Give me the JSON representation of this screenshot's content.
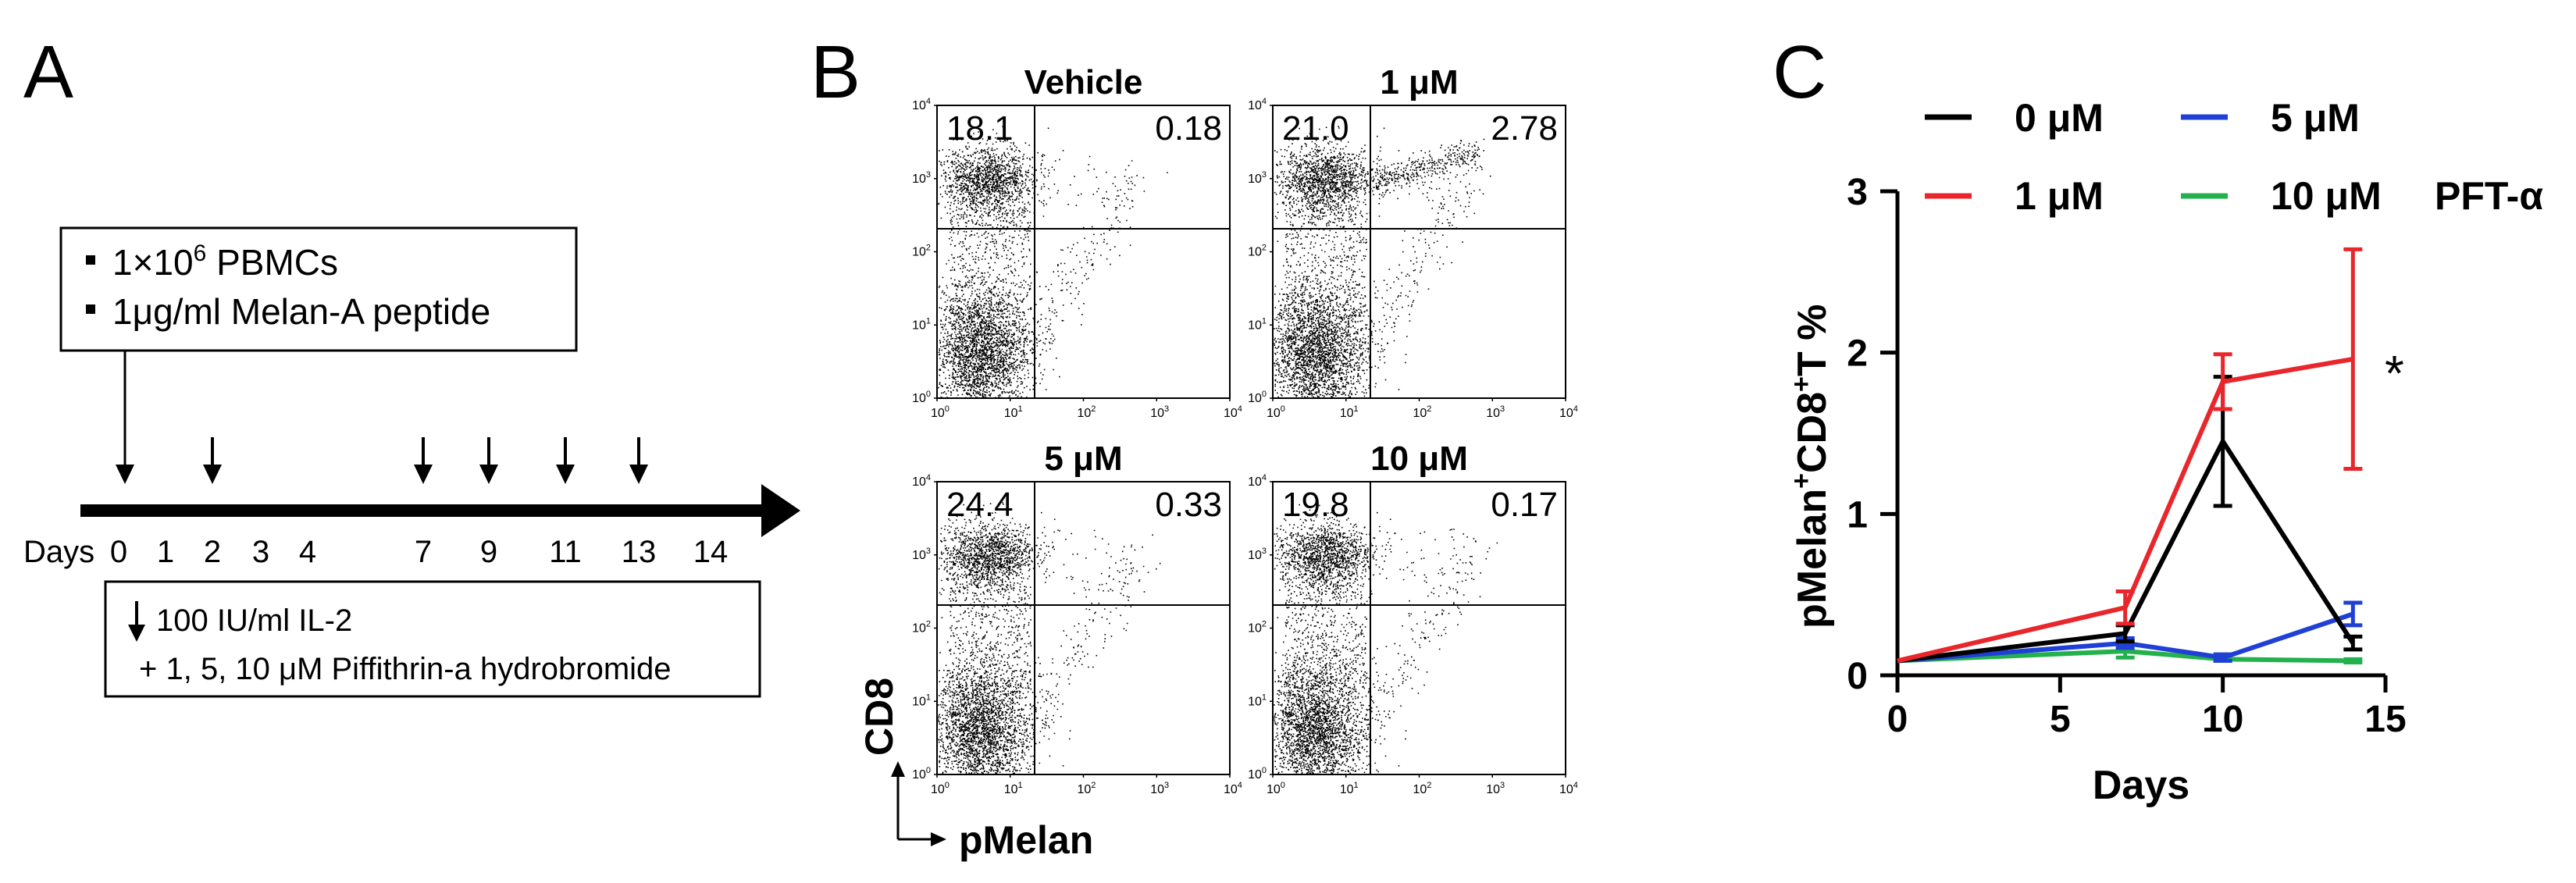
{
  "panel_a": {
    "letter": "A",
    "box1_line1": "1×10",
    "box1_line1_sup": "6",
    "box1_line1_rest": " PBMCs",
    "box1_line2": "1μg/ml Melan-A peptide",
    "days_label": "Days",
    "day_ticks": [
      "0",
      "1",
      "2",
      "3",
      "4",
      "7",
      "9",
      "11",
      "13",
      "14"
    ],
    "treatment_days": [
      "0",
      "2",
      "7",
      "9",
      "11",
      "13"
    ],
    "box2_line1": "100 IU/ml IL-2",
    "box2_line2": "+ 1, 5, 10 μM Piffithrin-a hydrobromide"
  },
  "panel_b": {
    "letter": "B",
    "plots": [
      {
        "title": "Vehicle",
        "ul": "18.1",
        "ur": "0.18"
      },
      {
        "title": "1 μM",
        "ul": "21.0",
        "ur": "2.78"
      },
      {
        "title": "5 μM",
        "ul": "24.4",
        "ur": "0.33"
      },
      {
        "title": "10 μM",
        "ul": "19.8",
        "ur": "0.17"
      }
    ],
    "tick_base": "10",
    "tick_exps": [
      "0",
      "1",
      "2",
      "3",
      "4"
    ],
    "y_axis_label": "CD8",
    "x_axis_label": "pMelan"
  },
  "panel_c": {
    "letter": "C",
    "legend_suffix": "PFT-α",
    "significance": "*",
    "colors": {
      "0": "#000000",
      "1": "#e8262b",
      "5": "#1f3fd6",
      "10": "#22b14c"
    },
    "chart_data": {
      "type": "line",
      "xlabel": "Days",
      "ylabel_parts": [
        "pMelan",
        "+",
        "CD8",
        "+",
        "T %"
      ],
      "xlim": [
        0,
        15
      ],
      "ylim": [
        0,
        3
      ],
      "x_ticks": [
        0,
        5,
        10,
        15
      ],
      "y_ticks": [
        0,
        1,
        2,
        3
      ],
      "series": [
        {
          "name": "0 μM",
          "color": "#000000",
          "x": [
            0,
            7,
            10,
            14
          ],
          "y": [
            0.09,
            0.26,
            1.45,
            0.2
          ],
          "err": [
            0,
            0.05,
            0.4,
            0.04
          ]
        },
        {
          "name": "1 μM",
          "color": "#e8262b",
          "x": [
            0,
            7,
            10,
            14
          ],
          "y": [
            0.09,
            0.42,
            1.82,
            1.96
          ],
          "err": [
            0,
            0.1,
            0.17,
            0.68
          ]
        },
        {
          "name": "5 μM",
          "color": "#1f3fd6",
          "x": [
            0,
            7,
            10,
            14
          ],
          "y": [
            0.09,
            0.2,
            0.11,
            0.38
          ],
          "err": [
            0,
            0.03,
            0.02,
            0.07
          ]
        },
        {
          "name": "10 μM",
          "color": "#22b14c",
          "x": [
            0,
            7,
            10,
            14
          ],
          "y": [
            0.09,
            0.15,
            0.1,
            0.09
          ],
          "err": [
            0,
            0.04,
            0.01,
            0.01
          ]
        }
      ]
    }
  }
}
